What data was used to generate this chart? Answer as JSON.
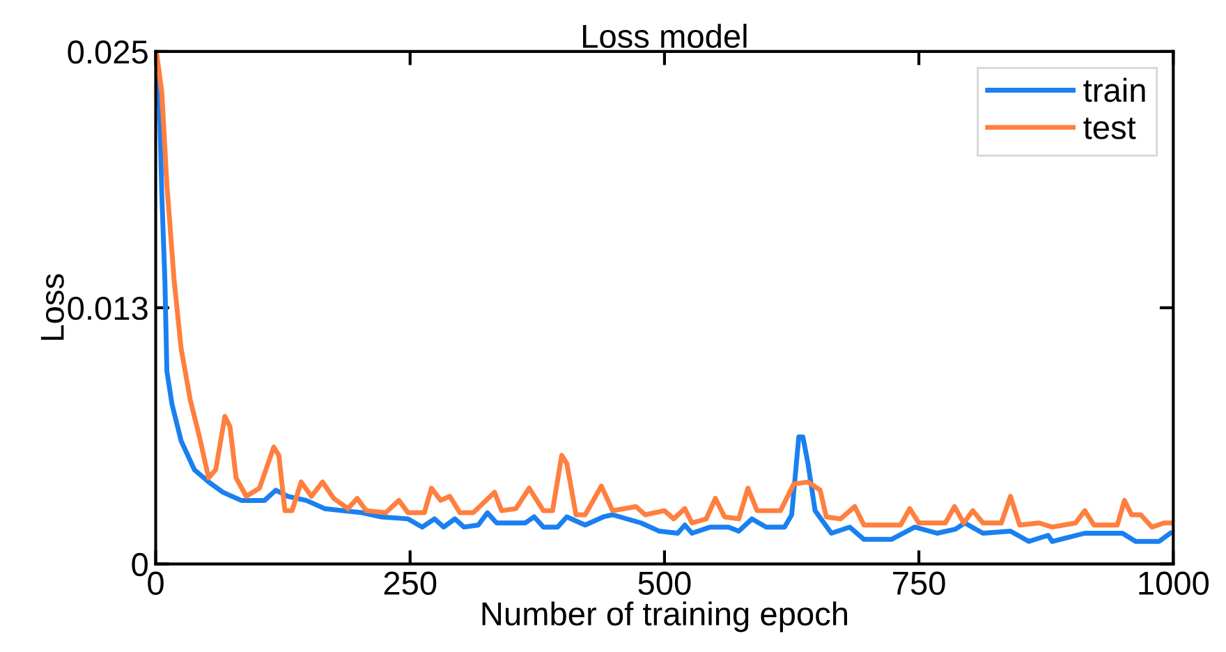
{
  "chart_data": {
    "type": "line",
    "title": "Loss model",
    "xlabel": "Number of training epoch",
    "ylabel": "Loss",
    "xlim": [
      0,
      1000
    ],
    "xticks": [
      0,
      250,
      500,
      750,
      1000
    ],
    "ylim": [
      0,
      0.025
    ],
    "yticks": [
      0,
      {
        "value": 0.0125,
        "label": "0.013"
      },
      {
        "value": 0.025,
        "label": "0.025"
      }
    ],
    "grid": false,
    "legend": "top right",
    "marker": "none",
    "line_style": "solid",
    "series": [
      {
        "name": "train",
        "color": "#1a80f0",
        "x": [
          2,
          4,
          6,
          9,
          11,
          16,
          25,
          38,
          52,
          66,
          84,
          107,
          118,
          130,
          148,
          166,
          203,
          221,
          248,
          262,
          274,
          283,
          294,
          303,
          317,
          326,
          335,
          363,
          372,
          381,
          395,
          404,
          422,
          440,
          449,
          477,
          495,
          513,
          520,
          527,
          545,
          563,
          573,
          586,
          600,
          618,
          625,
          632,
          636,
          641,
          648,
          664,
          682,
          696,
          723,
          746,
          768,
          786,
          795,
          813,
          840,
          858,
          877,
          881,
          913,
          950,
          963,
          986,
          997
        ],
        "values": [
          0.0237,
          0.0219,
          0.018,
          0.0139,
          0.0094,
          0.0078,
          0.006,
          0.0046,
          0.004,
          0.0035,
          0.0031,
          0.0031,
          0.0036,
          0.0033,
          0.0031,
          0.0027,
          0.0025,
          0.0023,
          0.0022,
          0.0018,
          0.0022,
          0.0018,
          0.0022,
          0.0018,
          0.0019,
          0.0025,
          0.002,
          0.002,
          0.0023,
          0.0018,
          0.0018,
          0.0023,
          0.0019,
          0.0023,
          0.0024,
          0.002,
          0.0016,
          0.0015,
          0.0019,
          0.0015,
          0.0018,
          0.0018,
          0.0016,
          0.0022,
          0.0018,
          0.0018,
          0.0024,
          0.0062,
          0.0062,
          0.0049,
          0.0026,
          0.0015,
          0.0018,
          0.0012,
          0.0012,
          0.0018,
          0.0015,
          0.0017,
          0.002,
          0.0015,
          0.0016,
          0.0011,
          0.0014,
          0.0011,
          0.0015,
          0.0015,
          0.0011,
          0.0011,
          0.0015
        ]
      },
      {
        "name": "test",
        "color": "#ff7f3f",
        "x": [
          1,
          6,
          11,
          18,
          25,
          34,
          43,
          52,
          59,
          68,
          73,
          79,
          89,
          102,
          116,
          121,
          127,
          134,
          143,
          153,
          164,
          175,
          189,
          198,
          207,
          226,
          239,
          248,
          264,
          271,
          280,
          289,
          299,
          312,
          333,
          340,
          354,
          367,
          381,
          390,
          399,
          404,
          413,
          422,
          438,
          449,
          472,
          481,
          500,
          509,
          520,
          527,
          541,
          550,
          559,
          573,
          582,
          591,
          614,
          627,
          641,
          653,
          659,
          673,
          687,
          696,
          732,
          741,
          750,
          776,
          785,
          794,
          803,
          813,
          831,
          840,
          849,
          868,
          881,
          904,
          913,
          922,
          945,
          952,
          959,
          968,
          979,
          991,
          997
        ],
        "values": [
          0.0249,
          0.023,
          0.0185,
          0.0139,
          0.0105,
          0.008,
          0.0062,
          0.0042,
          0.0046,
          0.0072,
          0.0067,
          0.0042,
          0.0033,
          0.0037,
          0.0057,
          0.0053,
          0.0026,
          0.0026,
          0.004,
          0.0033,
          0.004,
          0.0032,
          0.0027,
          0.0032,
          0.0026,
          0.0025,
          0.0031,
          0.0025,
          0.0025,
          0.0037,
          0.0031,
          0.0033,
          0.0025,
          0.0025,
          0.0035,
          0.0026,
          0.0027,
          0.0037,
          0.0026,
          0.0026,
          0.0053,
          0.0049,
          0.0024,
          0.0024,
          0.0038,
          0.0026,
          0.0028,
          0.0024,
          0.0026,
          0.0022,
          0.0027,
          0.002,
          0.0022,
          0.0032,
          0.0023,
          0.0022,
          0.0037,
          0.0026,
          0.0026,
          0.0039,
          0.004,
          0.0036,
          0.0023,
          0.0022,
          0.0028,
          0.0019,
          0.0019,
          0.0027,
          0.002,
          0.002,
          0.0028,
          0.002,
          0.0026,
          0.002,
          0.002,
          0.0033,
          0.0019,
          0.002,
          0.0018,
          0.002,
          0.0026,
          0.0019,
          0.0019,
          0.0031,
          0.0024,
          0.0024,
          0.0018,
          0.002,
          0.002
        ]
      }
    ]
  }
}
